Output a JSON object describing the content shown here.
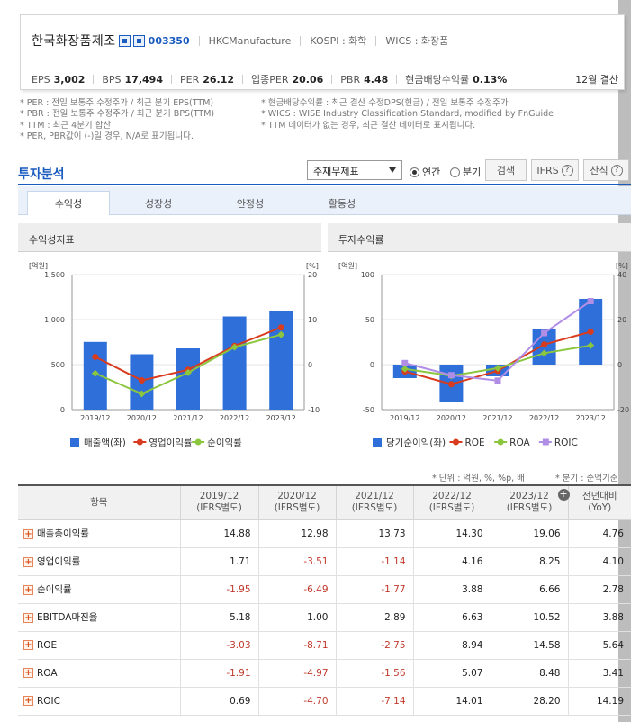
{
  "header": {
    "company": "한국화장품제조",
    "code": "003350",
    "english_name": "HKCManufacture",
    "market": "KOSPI : 화학",
    "wics": "WICS : 화장품",
    "metrics": [
      {
        "label": "EPS",
        "value": "3,002"
      },
      {
        "label": "BPS",
        "value": "17,494"
      },
      {
        "label": "PER",
        "value": "26.12"
      },
      {
        "label": "업종PER",
        "value": "20.06"
      },
      {
        "label": "PBR",
        "value": "4.48"
      },
      {
        "label": "현금배당수익률",
        "value": "0.13%"
      }
    ],
    "settlement": "12월 결산"
  },
  "notes": {
    "left": [
      "* PER : 전일 보통주 수정주가 / 최근 분기 EPS(TTM)",
      "* PBR : 전일 보통주 수정주가 / 최근 분기 BPS(TTM)",
      "* TTM : 최근 4분기 합산",
      "* PER, PBR값이 (-)일 경우, N/A로 표기됩니다."
    ],
    "right": [
      "* 현금배당수익률 : 최근 결산 수정DPS(현금) / 전일 보통주 수정주가",
      "* WICS : WISE Industry Classification Standard, modified by FnGuide",
      "* TTM 데이터가 없는 경우, 최근 결산 데이터로 표시됩니다."
    ]
  },
  "analysis": {
    "title": "투자분석",
    "select_value": "주재무제표",
    "radio_annual": "연간",
    "radio_quarter": "분기",
    "search_button": "검색",
    "ifrs_button": "IFRS",
    "formula_button": "산식"
  },
  "tabs": [
    "수익성",
    "성장성",
    "안정성",
    "활동성"
  ],
  "charts": {
    "left_title": "수익성지표",
    "right_title": "투자수익률"
  },
  "chart_data": [
    {
      "type": "bar",
      "title": "수익성지표",
      "categories": [
        "2019/12",
        "2020/12",
        "2021/12",
        "2022/12",
        "2023/12"
      ],
      "left_axis_label": "[억원]",
      "right_axis_label": "[%]",
      "ylim": [
        0,
        1500
      ],
      "ylim_right": [
        -10,
        20
      ],
      "left_ticks": [
        "0",
        "500",
        "1,000",
        "1,500"
      ],
      "right_ticks": [
        "-10",
        "0",
        "10",
        "20"
      ],
      "series": [
        {
          "name": "매출액(좌)",
          "kind": "bar",
          "axis": "left",
          "color": "#2e6fd9",
          "values": [
            752,
            615,
            680,
            1035,
            1090
          ]
        },
        {
          "name": "영업이익률",
          "kind": "line",
          "axis": "right",
          "color": "#d93b1e",
          "values": [
            1.71,
            -3.51,
            -1.14,
            4.16,
            8.25
          ]
        },
        {
          "name": "순이익률",
          "kind": "line",
          "axis": "right",
          "color": "#8cc63f",
          "values": [
            -1.95,
            -6.49,
            -1.77,
            3.88,
            6.66
          ]
        }
      ]
    },
    {
      "type": "bar",
      "title": "투자수익률",
      "categories": [
        "2019/12",
        "2020/12",
        "2021/12",
        "2022/12",
        "2023/12"
      ],
      "left_axis_label": "[억원]",
      "right_axis_label": "[%]",
      "ylim": [
        -50,
        100
      ],
      "ylim_right": [
        -20,
        40
      ],
      "left_ticks": [
        "-50",
        "0",
        "50",
        "100"
      ],
      "right_ticks": [
        "-20",
        "0",
        "20",
        "40"
      ],
      "series": [
        {
          "name": "당기순이익(좌)",
          "kind": "bar",
          "axis": "left",
          "color": "#2e6fd9",
          "values": [
            -15,
            -42,
            -13,
            40,
            73
          ]
        },
        {
          "name": "ROE",
          "kind": "line",
          "axis": "right",
          "color": "#d93b1e",
          "values": [
            -3.03,
            -8.71,
            -2.75,
            8.94,
            14.58
          ]
        },
        {
          "name": "ROA",
          "kind": "line",
          "axis": "right",
          "color": "#8cc63f",
          "values": [
            -1.91,
            -4.97,
            -1.56,
            5.07,
            8.48
          ]
        },
        {
          "name": "ROIC",
          "kind": "line",
          "axis": "right",
          "color": "#b18ee6",
          "values": [
            0.69,
            -4.7,
            -7.14,
            14.01,
            28.2
          ]
        }
      ]
    }
  ],
  "unit_note": "* 단위 : 억원, %, %p, 배",
  "quarter_note": "* 분기 : 순액기준",
  "table": {
    "header_item": "항목",
    "columns": [
      {
        "year": "2019/12",
        "basis": "(IFRS별도)"
      },
      {
        "year": "2020/12",
        "basis": "(IFRS별도)"
      },
      {
        "year": "2021/12",
        "basis": "(IFRS별도)"
      },
      {
        "year": "2022/12",
        "basis": "(IFRS별도)"
      },
      {
        "year": "2023/12",
        "basis": "(IFRS별도)"
      }
    ],
    "yoy_header": "전년대비",
    "yoy_sub": "(YoY)",
    "rows": [
      {
        "label": "매출총이익률",
        "values": [
          "14.88",
          "12.98",
          "13.73",
          "14.30",
          "19.06"
        ],
        "yoy": "4.76"
      },
      {
        "label": "영업이익률",
        "values": [
          "1.71",
          "-3.51",
          "-1.14",
          "4.16",
          "8.25"
        ],
        "yoy": "4.10"
      },
      {
        "label": "순이익률",
        "values": [
          "-1.95",
          "-6.49",
          "-1.77",
          "3.88",
          "6.66"
        ],
        "yoy": "2.78"
      },
      {
        "label": "EBITDA마진율",
        "values": [
          "5.18",
          "1.00",
          "2.89",
          "6.63",
          "10.52"
        ],
        "yoy": "3.88"
      },
      {
        "label": "ROE",
        "values": [
          "-3.03",
          "-8.71",
          "-2.75",
          "8.94",
          "14.58"
        ],
        "yoy": "5.64"
      },
      {
        "label": "ROA",
        "values": [
          "-1.91",
          "-4.97",
          "-1.56",
          "5.07",
          "8.48"
        ],
        "yoy": "3.41"
      },
      {
        "label": "ROIC",
        "values": [
          "0.69",
          "-4.70",
          "-7.14",
          "14.01",
          "28.20"
        ],
        "yoy": "14.19"
      }
    ]
  }
}
